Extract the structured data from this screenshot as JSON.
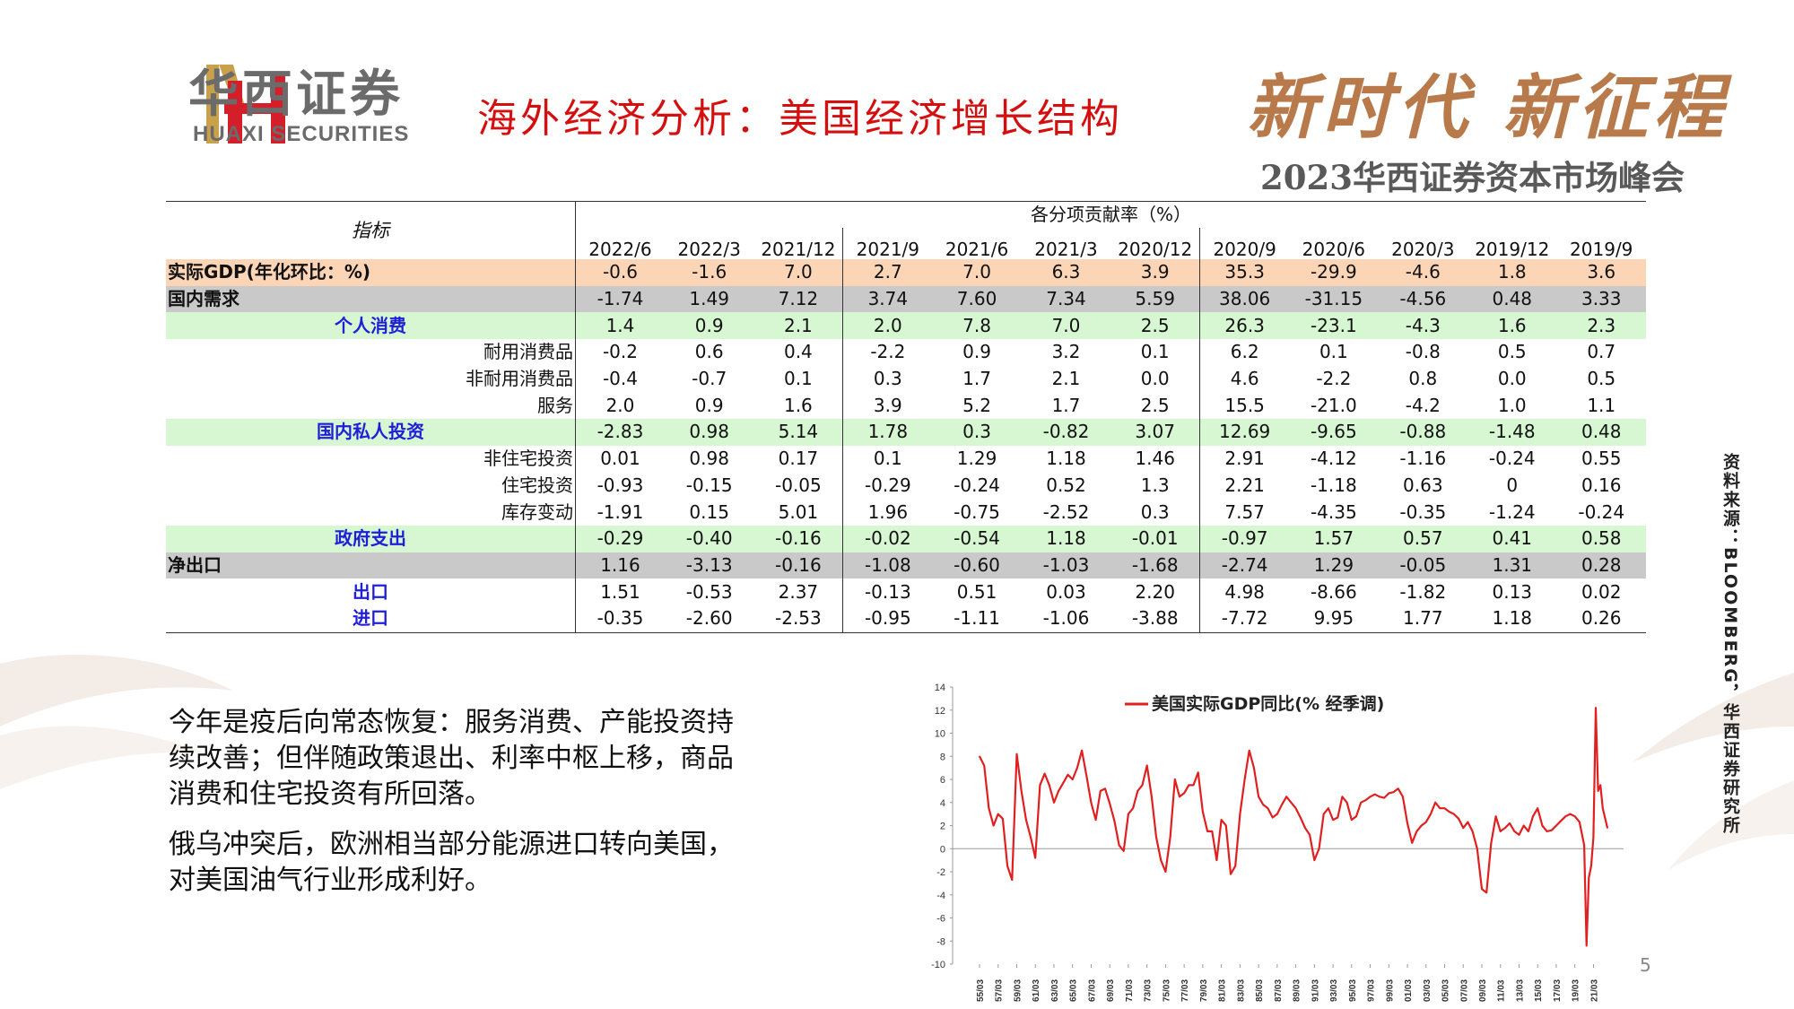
{
  "header": {
    "logo_cn": "华西证券",
    "logo_en": "HUAXI SECURITIES",
    "title": "海外经济分析：美国经济增长结构",
    "slogan": "新时代 新征程",
    "summit": "2023华西证券资本市场峰会"
  },
  "colors": {
    "brand_red": "#d40f0f",
    "slogan_gold": "#b87a4a",
    "row_orange": "#fbd5b5",
    "row_gray": "#c9c9c9",
    "row_green": "#d6f7d2",
    "label_blue": "#1f1fd8",
    "line_red": "#e02020"
  },
  "table": {
    "indicator_header": "指标",
    "group_header": "各分项贡献率（%）",
    "periods": [
      "2022/6",
      "2022/3",
      "2021/12",
      "2021/9",
      "2021/6",
      "2021/3",
      "2020/12",
      "2020/9",
      "2020/6",
      "2020/3",
      "2019/12",
      "2019/9"
    ],
    "rows": [
      {
        "label": "实际GDP(年化环比：%)",
        "style": "orange",
        "values": [
          "-0.6",
          "-1.6",
          "7.0",
          "2.7",
          "7.0",
          "6.3",
          "3.9",
          "35.3",
          "-29.9",
          "-4.6",
          "1.8",
          "3.6"
        ]
      },
      {
        "label": "国内需求",
        "style": "gray",
        "values": [
          "-1.74",
          "1.49",
          "7.12",
          "3.74",
          "7.60",
          "7.34",
          "5.59",
          "38.06",
          "-31.15",
          "-4.56",
          "0.48",
          "3.33"
        ]
      },
      {
        "label": "个人消费",
        "style": "green",
        "values": [
          "1.4",
          "0.9",
          "2.1",
          "2.0",
          "7.8",
          "7.0",
          "2.5",
          "26.3",
          "-23.1",
          "-4.3",
          "1.6",
          "2.3"
        ]
      },
      {
        "label": "耐用消费品",
        "style": "sub",
        "values": [
          "-0.2",
          "0.6",
          "0.4",
          "-2.2",
          "0.9",
          "3.2",
          "0.1",
          "6.2",
          "0.1",
          "-0.8",
          "0.5",
          "0.7"
        ]
      },
      {
        "label": "非耐用消费品",
        "style": "sub",
        "values": [
          "-0.4",
          "-0.7",
          "0.1",
          "0.3",
          "1.7",
          "2.1",
          "0.0",
          "4.6",
          "-2.2",
          "0.8",
          "0.0",
          "0.5"
        ]
      },
      {
        "label": "服务",
        "style": "sub",
        "values": [
          "2.0",
          "0.9",
          "1.6",
          "3.9",
          "5.2",
          "1.7",
          "2.5",
          "15.5",
          "-21.0",
          "-4.2",
          "1.0",
          "1.1"
        ]
      },
      {
        "label": "国内私人投资",
        "style": "green",
        "values": [
          "-2.83",
          "0.98",
          "5.14",
          "1.78",
          "0.3",
          "-0.82",
          "3.07",
          "12.69",
          "-9.65",
          "-0.88",
          "-1.48",
          "0.48"
        ]
      },
      {
        "label": "非住宅投资",
        "style": "sub",
        "values": [
          "0.01",
          "0.98",
          "0.17",
          "0.1",
          "1.29",
          "1.18",
          "1.46",
          "2.91",
          "-4.12",
          "-1.16",
          "-0.24",
          "0.55"
        ]
      },
      {
        "label": "住宅投资",
        "style": "sub",
        "values": [
          "-0.93",
          "-0.15",
          "-0.05",
          "-0.29",
          "-0.24",
          "0.52",
          "1.3",
          "2.21",
          "-1.18",
          "0.63",
          "0",
          "0.16"
        ]
      },
      {
        "label": "库存变动",
        "style": "sub",
        "values": [
          "-1.91",
          "0.15",
          "5.01",
          "1.96",
          "-0.75",
          "-2.52",
          "0.3",
          "7.57",
          "-4.35",
          "-0.35",
          "-1.24",
          "-0.24"
        ]
      },
      {
        "label": "政府支出",
        "style": "green",
        "values": [
          "-0.29",
          "-0.40",
          "-0.16",
          "-0.02",
          "-0.54",
          "1.18",
          "-0.01",
          "-0.97",
          "1.57",
          "0.57",
          "0.41",
          "0.58"
        ]
      },
      {
        "label": "净出口",
        "style": "gray",
        "values": [
          "1.16",
          "-3.13",
          "-0.16",
          "-1.08",
          "-0.60",
          "-1.03",
          "-1.68",
          "-2.74",
          "1.29",
          "-0.05",
          "1.31",
          "0.28"
        ]
      },
      {
        "label": "出口",
        "style": "blue",
        "values": [
          "1.51",
          "-0.53",
          "2.37",
          "-0.13",
          "0.51",
          "0.03",
          "2.20",
          "4.98",
          "-8.66",
          "-1.82",
          "0.13",
          "0.02"
        ]
      },
      {
        "label": "进口",
        "style": "blue",
        "values": [
          "-0.35",
          "-2.60",
          "-2.53",
          "-0.95",
          "-1.11",
          "-1.06",
          "-3.88",
          "-7.72",
          "9.95",
          "1.77",
          "1.18",
          "0.26"
        ]
      }
    ]
  },
  "notes": [
    "今年是疫后向常态恢复：服务消费、产能投资持续改善；但伴随政策退出、利率中枢上移，商品消费和住宅投资有所回落。",
    "俄乌冲突后，欧洲相当部分能源进口转向美国，对美国油气行业形成利好。"
  ],
  "source": "资料来源：BLOOMBERG，华西证券研究所",
  "page_number": "5",
  "chart_data": {
    "type": "line",
    "title": "",
    "xlabel": "",
    "ylabel": "",
    "ylim": [
      -10,
      14
    ],
    "yticks": [
      "14",
      "12",
      "10",
      "8",
      "6",
      "4",
      "2",
      "0",
      "-2",
      "-4",
      "-6",
      "-8",
      "-10"
    ],
    "xticks": [
      "55/03",
      "57/03",
      "59/03",
      "61/03",
      "63/03",
      "65/03",
      "67/03",
      "69/03",
      "71/03",
      "73/03",
      "75/03",
      "77/03",
      "79/03",
      "81/03",
      "83/03",
      "85/03",
      "87/03",
      "89/03",
      "91/03",
      "93/03",
      "95/03",
      "97/03",
      "99/03",
      "01/03",
      "03/03",
      "05/03",
      "07/03",
      "09/03",
      "11/03",
      "13/03",
      "15/03",
      "17/03",
      "19/03",
      "21/03"
    ],
    "legend_position": "top",
    "series": [
      {
        "name": "美国实际GDP同比(% 经季调)",
        "color": "#e02020",
        "x": [
          1955.0,
          1955.5,
          1956.0,
          1956.5,
          1957.0,
          1957.5,
          1958.0,
          1958.5,
          1959.0,
          1959.5,
          1960.0,
          1960.5,
          1961.0,
          1961.5,
          1962.0,
          1962.5,
          1963.0,
          1963.5,
          1964.0,
          1964.5,
          1965.0,
          1965.5,
          1966.0,
          1966.5,
          1967.0,
          1967.5,
          1968.0,
          1968.5,
          1969.0,
          1969.5,
          1970.0,
          1970.5,
          1971.0,
          1971.5,
          1972.0,
          1972.5,
          1973.0,
          1973.5,
          1974.0,
          1974.5,
          1975.0,
          1975.5,
          1976.0,
          1976.5,
          1977.0,
          1977.5,
          1978.0,
          1978.5,
          1979.0,
          1979.5,
          1980.0,
          1980.5,
          1981.0,
          1981.5,
          1982.0,
          1982.5,
          1983.0,
          1983.5,
          1984.0,
          1984.5,
          1985.0,
          1985.5,
          1986.0,
          1986.5,
          1987.0,
          1987.5,
          1988.0,
          1988.5,
          1989.0,
          1989.5,
          1990.0,
          1990.5,
          1991.0,
          1991.5,
          1992.0,
          1992.5,
          1993.0,
          1993.5,
          1994.0,
          1994.5,
          1995.0,
          1995.5,
          1996.0,
          1996.5,
          1997.0,
          1997.5,
          1998.0,
          1998.5,
          1999.0,
          1999.5,
          2000.0,
          2000.5,
          2001.0,
          2001.5,
          2002.0,
          2002.5,
          2003.0,
          2003.5,
          2004.0,
          2004.5,
          2005.0,
          2005.5,
          2006.0,
          2006.5,
          2007.0,
          2007.5,
          2008.0,
          2008.5,
          2009.0,
          2009.5,
          2010.0,
          2010.5,
          2011.0,
          2011.5,
          2012.0,
          2012.5,
          2013.0,
          2013.5,
          2014.0,
          2014.5,
          2015.0,
          2015.5,
          2016.0,
          2016.5,
          2017.0,
          2017.5,
          2018.0,
          2018.5,
          2019.0,
          2019.5,
          2020.0,
          2020.25,
          2020.5,
          2020.75,
          2021.0,
          2021.25,
          2021.5,
          2021.75,
          2022.0,
          2022.5
        ],
        "y": [
          8.0,
          7.2,
          3.5,
          2.0,
          3.0,
          2.6,
          -1.5,
          -2.7,
          8.2,
          5.0,
          2.5,
          1.0,
          -0.8,
          5.5,
          6.5,
          5.5,
          4.0,
          5.0,
          5.7,
          6.4,
          6.0,
          7.0,
          8.5,
          6.3,
          4.0,
          2.5,
          5.0,
          5.2,
          3.9,
          2.4,
          0.3,
          -0.2,
          3.0,
          3.5,
          5.0,
          5.5,
          7.2,
          4.5,
          1.0,
          -1.0,
          -2.0,
          1.0,
          6.0,
          4.5,
          4.8,
          5.5,
          5.5,
          6.6,
          3.2,
          1.5,
          1.5,
          -1.0,
          2.5,
          2.0,
          -2.2,
          -1.5,
          3.0,
          6.0,
          8.5,
          7.0,
          4.5,
          3.8,
          3.5,
          2.7,
          3.0,
          3.8,
          4.5,
          4.0,
          3.5,
          2.7,
          1.8,
          1.2,
          -1.0,
          0.0,
          3.0,
          3.5,
          2.5,
          2.7,
          4.5,
          4.0,
          2.5,
          2.8,
          4.0,
          4.2,
          4.5,
          4.7,
          4.5,
          4.4,
          4.8,
          4.9,
          5.2,
          4.5,
          2.2,
          0.5,
          1.5,
          2.0,
          2.3,
          3.0,
          4.0,
          3.5,
          3.5,
          3.2,
          3.0,
          2.6,
          1.8,
          2.3,
          1.5,
          0.0,
          -3.5,
          -3.8,
          0.5,
          2.8,
          1.5,
          1.8,
          2.2,
          1.5,
          1.2,
          2.0,
          1.5,
          2.8,
          3.5,
          2.0,
          1.5,
          1.6,
          2.0,
          2.4,
          2.8,
          3.0,
          2.8,
          2.3,
          0.3,
          -8.4,
          -2.5,
          -1.5,
          1.0,
          12.2,
          5.0,
          5.5,
          3.5,
          1.8
        ]
      }
    ]
  }
}
